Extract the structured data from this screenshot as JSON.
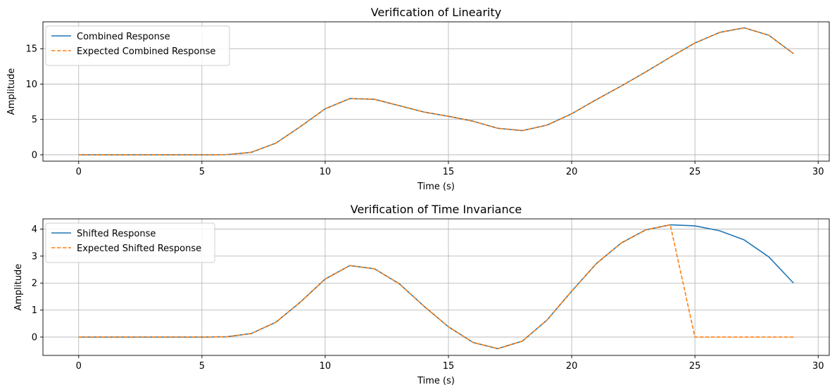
{
  "chart_data": [
    {
      "type": "line",
      "title": "Verification of Linearity",
      "xlabel": "Time (s)",
      "ylabel": "Amplitude",
      "xlim": [
        -1.45,
        30.45
      ],
      "ylim": [
        -0.9,
        18.8
      ],
      "xticks": [
        0,
        5,
        10,
        15,
        20,
        25,
        30
      ],
      "yticks": [
        0,
        5,
        10,
        15
      ],
      "grid": true,
      "legend": "top-left",
      "x": [
        0,
        1,
        2,
        3,
        4,
        5,
        6,
        7,
        8,
        9,
        10,
        11,
        12,
        13,
        14,
        15,
        16,
        17,
        18,
        19,
        20,
        21,
        22,
        23,
        24,
        25,
        26,
        27,
        28,
        29
      ],
      "series": [
        {
          "name": "Combined Response",
          "color": "#1f77b4",
          "style": "solid",
          "values": [
            0,
            0,
            0,
            0,
            0,
            0,
            0.02,
            0.35,
            1.65,
            4.0,
            6.5,
            7.95,
            7.85,
            6.95,
            6.05,
            5.45,
            4.75,
            3.75,
            3.42,
            4.2,
            5.8,
            7.8,
            9.7,
            11.7,
            13.8,
            15.8,
            17.3,
            17.95,
            16.9,
            14.3
          ]
        },
        {
          "name": "Expected Combined Response",
          "color": "#ff7f0e",
          "style": "dashed",
          "values": [
            0,
            0,
            0,
            0,
            0,
            0,
            0.02,
            0.35,
            1.65,
            4.0,
            6.5,
            7.95,
            7.85,
            6.95,
            6.05,
            5.45,
            4.75,
            3.75,
            3.42,
            4.2,
            5.8,
            7.8,
            9.7,
            11.7,
            13.8,
            15.8,
            17.3,
            17.95,
            16.9,
            14.3
          ]
        }
      ]
    },
    {
      "type": "line",
      "title": "Verification of Time Invariance",
      "xlabel": "Time (s)",
      "ylabel": "Amplitude",
      "xlim": [
        -1.45,
        30.45
      ],
      "ylim": [
        -0.68,
        4.38
      ],
      "xticks": [
        0,
        5,
        10,
        15,
        20,
        25,
        30
      ],
      "yticks": [
        0,
        1,
        2,
        3,
        4
      ],
      "grid": true,
      "legend": "top-left",
      "x": [
        0,
        1,
        2,
        3,
        4,
        5,
        6,
        7,
        8,
        9,
        10,
        11,
        12,
        13,
        14,
        15,
        16,
        17,
        18,
        19,
        20,
        21,
        22,
        23,
        24,
        25,
        26,
        27,
        28,
        29
      ],
      "series": [
        {
          "name": "Shifted Response",
          "color": "#1f77b4",
          "style": "solid",
          "values": [
            0,
            0,
            0,
            0,
            0,
            0,
            0.01,
            0.13,
            0.55,
            1.3,
            2.15,
            2.65,
            2.53,
            1.98,
            1.15,
            0.38,
            -0.2,
            -0.43,
            -0.15,
            0.63,
            1.7,
            2.72,
            3.48,
            3.97,
            4.16,
            4.12,
            3.94,
            3.6,
            2.97,
            2.0
          ]
        },
        {
          "name": "Expected Shifted Response",
          "color": "#ff7f0e",
          "style": "dashed",
          "values": [
            0,
            0,
            0,
            0,
            0,
            0,
            0.01,
            0.13,
            0.55,
            1.3,
            2.15,
            2.65,
            2.53,
            1.98,
            1.15,
            0.38,
            -0.2,
            -0.43,
            -0.15,
            0.63,
            1.7,
            2.72,
            3.48,
            3.97,
            4.16,
            0,
            0,
            0,
            0,
            0
          ]
        }
      ]
    }
  ]
}
